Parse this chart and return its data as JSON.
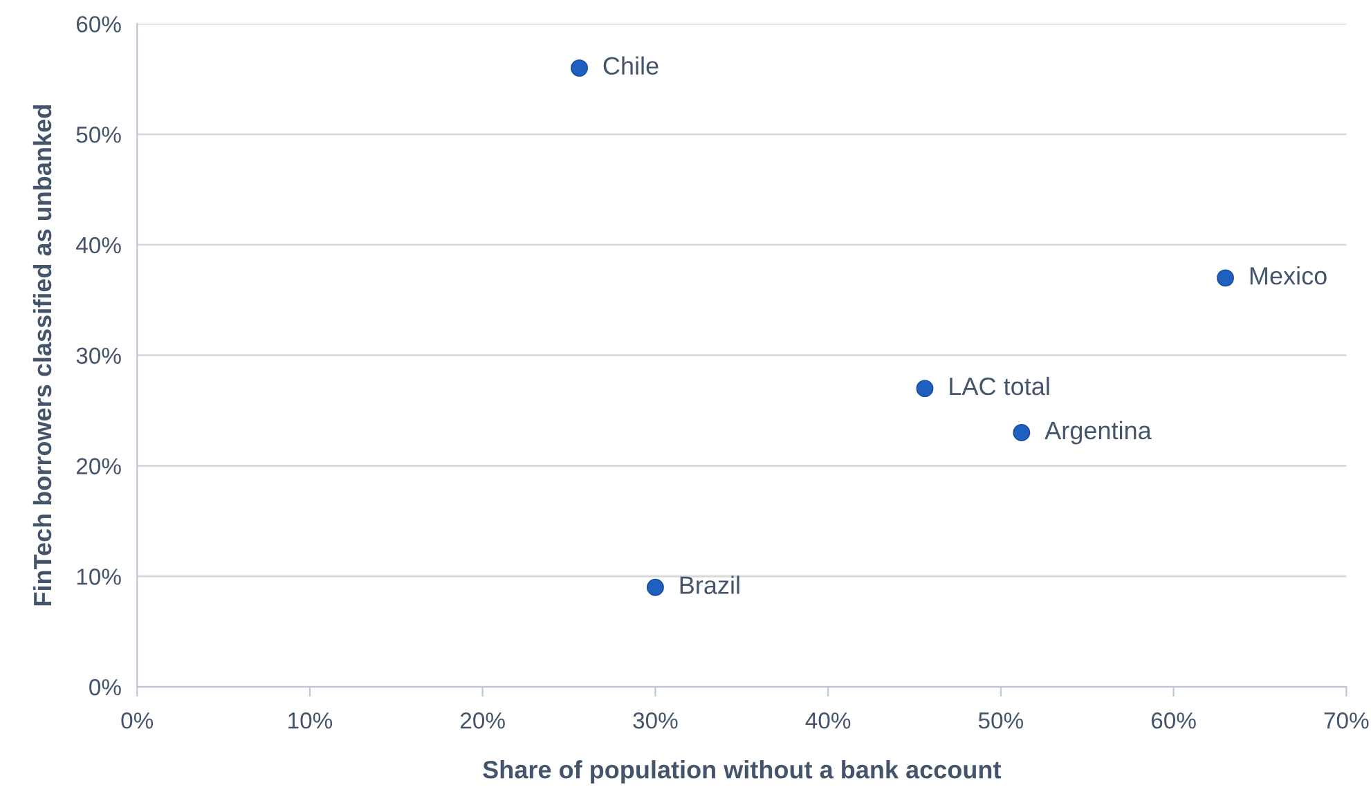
{
  "chart_data": {
    "type": "scatter",
    "xlabel": "Share of population without a bank account",
    "ylabel": "FinTech borrowers classified as unbanked",
    "series": [
      {
        "color": "#1f5fbf",
        "x": [
          25.6,
          63.0,
          45.6,
          51.2,
          30.0
        ],
        "values": [
          56,
          37,
          27,
          23,
          9
        ]
      }
    ],
    "annotations": [
      {
        "text": "Chile",
        "x": 25.6,
        "y": 56
      },
      {
        "text": "Mexico",
        "x": 63.0,
        "y": 37
      },
      {
        "text": "LAC total",
        "x": 45.6,
        "y": 27
      },
      {
        "text": "Argentina",
        "x": 51.2,
        "y": 23
      },
      {
        "text": "Brazil",
        "x": 30.0,
        "y": 9
      }
    ],
    "xlim": [
      0,
      70
    ],
    "xticks": [
      {
        "value": 0,
        "label": "0%"
      },
      {
        "value": 10,
        "label": "10%"
      },
      {
        "value": 20,
        "label": "20%"
      },
      {
        "value": 30,
        "label": "30%"
      },
      {
        "value": 40,
        "label": "40%"
      },
      {
        "value": 50,
        "label": "50%"
      },
      {
        "value": 60,
        "label": "60%"
      },
      {
        "value": 70,
        "label": "70%"
      }
    ],
    "ylim": [
      0,
      60
    ],
    "yticks": [
      {
        "value": 0,
        "label": "0%"
      },
      {
        "value": 10,
        "label": "10%"
      },
      {
        "value": 20,
        "label": "20%"
      },
      {
        "value": 30,
        "label": "30%"
      },
      {
        "value": 40,
        "label": "40%"
      },
      {
        "value": 50,
        "label": "50%"
      },
      {
        "value": 60,
        "label": "60%"
      }
    ],
    "grid": "y",
    "marker": "circle",
    "legend": false
  }
}
